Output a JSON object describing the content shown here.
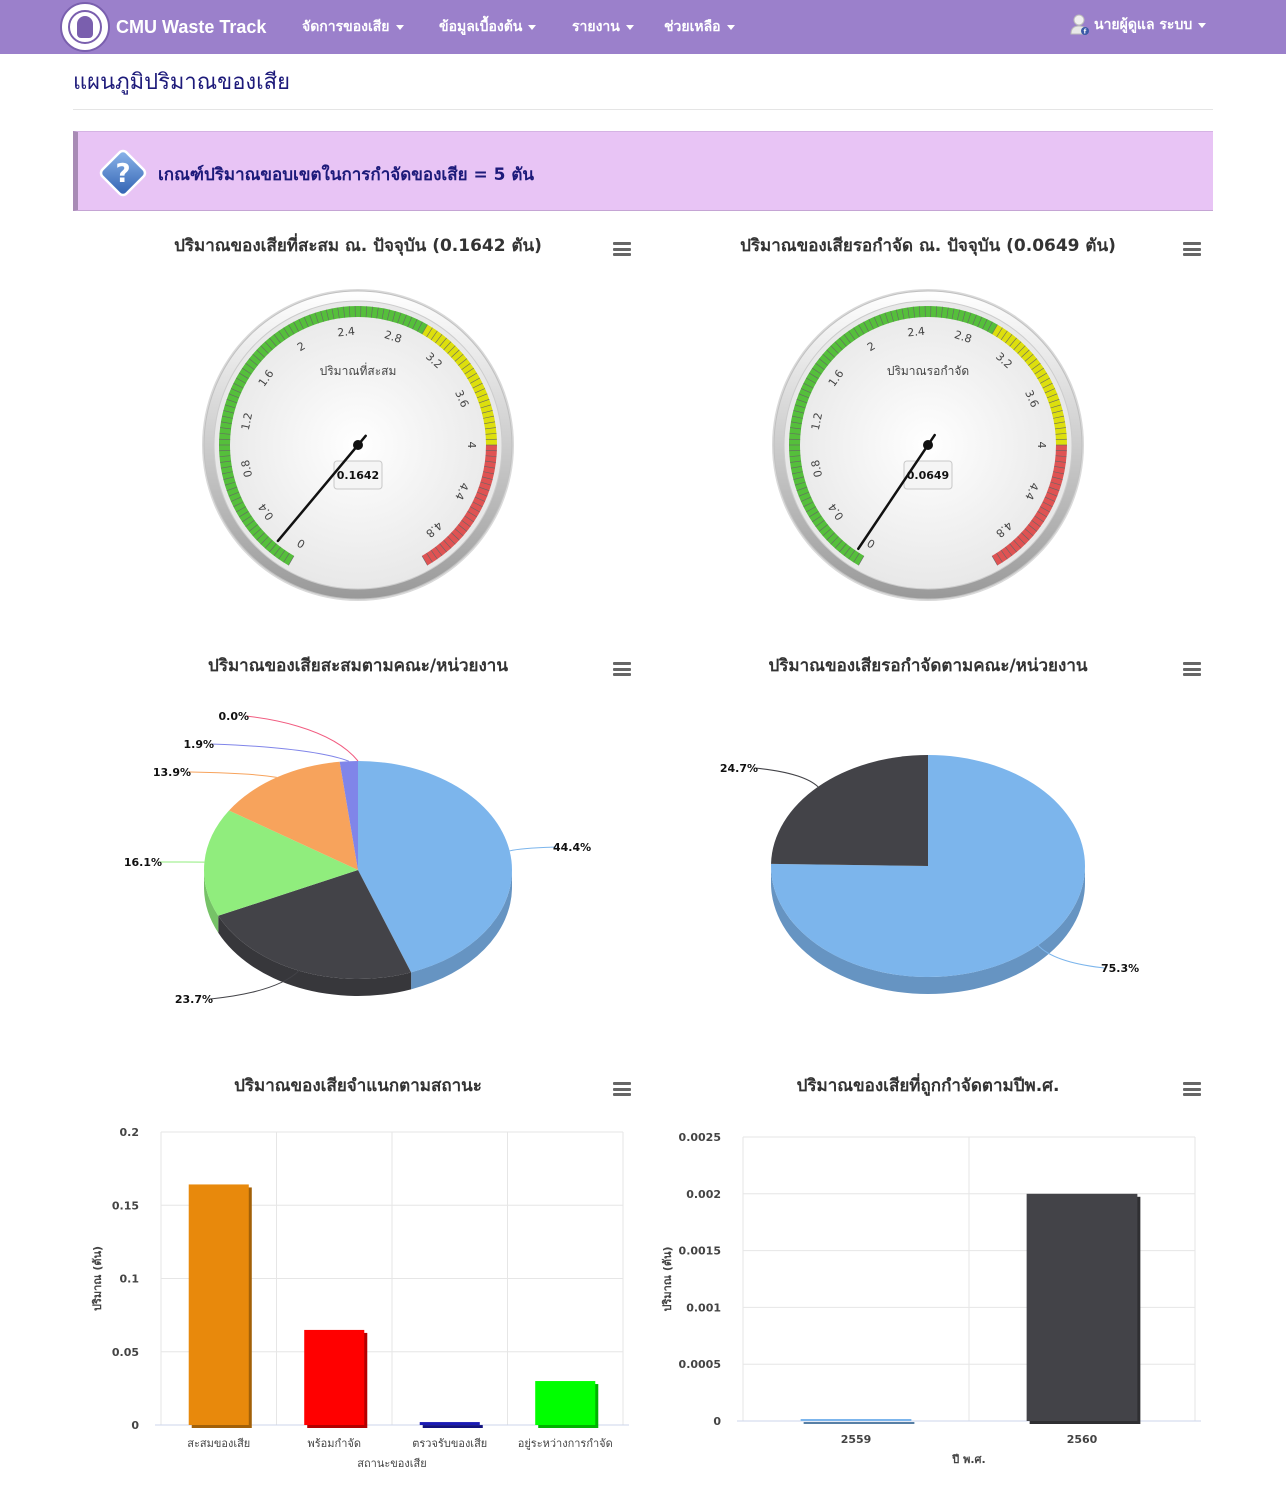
{
  "navbar": {
    "brand": "CMU Waste Track",
    "menu": [
      {
        "label": "จัดการของเสีย"
      },
      {
        "label": "ข้อมูลเบื้องต้น"
      },
      {
        "label": "รายงาน"
      },
      {
        "label": "ช่วยเหลือ"
      }
    ],
    "user": "นายผู้ดูแล ระบบ"
  },
  "page": {
    "title": "แผนภูมิปริมาณของเสีย",
    "alert": "เกณฑ์ปริมาณขอบเขตในการกำจัดของเสีย = 5 ตัน"
  },
  "chart_data": [
    {
      "type": "gauge",
      "title": "ปริมาณของเสียที่สะสม ณ. ปัจจุบัน (0.1642 ตัน)",
      "label": "ปริมาณที่สะสม",
      "value": 0.1642,
      "value_label": "0.1642",
      "min": 0,
      "max": 5,
      "ticks": [
        "0",
        "0.4",
        "0.8",
        "1.2",
        "1.6",
        "2",
        "2.4",
        "2.8",
        "3.2",
        "3.6",
        "4",
        "4.4",
        "4.8"
      ],
      "bands": [
        {
          "from": 0,
          "to": 3,
          "color": "#55bf3b"
        },
        {
          "from": 3,
          "to": 4,
          "color": "#dddf0d"
        },
        {
          "from": 4,
          "to": 5,
          "color": "#df5353"
        }
      ]
    },
    {
      "type": "gauge",
      "title": "ปริมาณของเสียรอกำจัด ณ. ปัจจุบัน (0.0649 ตัน)",
      "label": "ปริมาณรอกำจัด",
      "value": 0.0649,
      "value_label": "0.0649",
      "min": 0,
      "max": 5,
      "ticks": [
        "0",
        "0.4",
        "0.8",
        "1.2",
        "1.6",
        "2",
        "2.4",
        "2.8",
        "3.2",
        "3.6",
        "4",
        "4.4",
        "4.8"
      ],
      "bands": [
        {
          "from": 0,
          "to": 3,
          "color": "#55bf3b"
        },
        {
          "from": 3,
          "to": 4,
          "color": "#dddf0d"
        },
        {
          "from": 4,
          "to": 5,
          "color": "#df5353"
        }
      ]
    },
    {
      "type": "pie",
      "title": "ปริมาณของเสียสะสมตามคณะ/หน่วยงาน",
      "slices": [
        {
          "value": 44.4,
          "label": "44.4%",
          "color": "#7cb5ec"
        },
        {
          "value": 23.7,
          "label": "23.7%",
          "color": "#434348"
        },
        {
          "value": 16.1,
          "label": "16.1%",
          "color": "#90ed7d"
        },
        {
          "value": 13.9,
          "label": "13.9%",
          "color": "#f7a35c"
        },
        {
          "value": 1.9,
          "label": "1.9%",
          "color": "#8085e9"
        },
        {
          "value": 0.0,
          "label": "0.0%",
          "color": "#f15c80"
        }
      ]
    },
    {
      "type": "pie",
      "title": "ปริมาณของเสียรอกำจัดตามคณะ/หน่วยงาน",
      "slices": [
        {
          "value": 75.3,
          "label": "75.3%",
          "color": "#7cb5ec"
        },
        {
          "value": 24.7,
          "label": "24.7%",
          "color": "#434348"
        }
      ]
    },
    {
      "type": "bar",
      "title": "ปริมาณของเสียจำแนกตามสถานะ",
      "xlabel": "สถานะของเสีย",
      "ylabel": "ปริมาณ (ตัน)",
      "categories": [
        "สะสมของเสีย",
        "พร้อมกำจัด",
        "ตรวจรับของเสีย",
        "อยู่ระหว่างการกำจัด"
      ],
      "values": [
        0.1642,
        0.0649,
        0.002,
        0.03
      ],
      "colors": [
        "#e8890c",
        "#ff0000",
        "#1a1ab5",
        "#00ff00"
      ],
      "ylim": [
        0,
        0.2
      ],
      "yticks": [
        "0",
        "0.05",
        "0.1",
        "0.15",
        "0.2"
      ]
    },
    {
      "type": "bar",
      "title": "ปริมาณของเสียที่ถูกกำจัดตามปีพ.ศ.",
      "xlabel": "ปี พ.ศ.",
      "ylabel": "ปริมาณ (ตัน)",
      "categories": [
        "2559",
        "2560"
      ],
      "values": [
        1e-05,
        0.002
      ],
      "colors": [
        "#7cb5ec",
        "#434348"
      ],
      "ylim": [
        0,
        0.0025
      ],
      "yticks": [
        "0",
        "0.0005",
        "0.001",
        "0.0015",
        "0.002",
        "0.0025"
      ]
    }
  ]
}
